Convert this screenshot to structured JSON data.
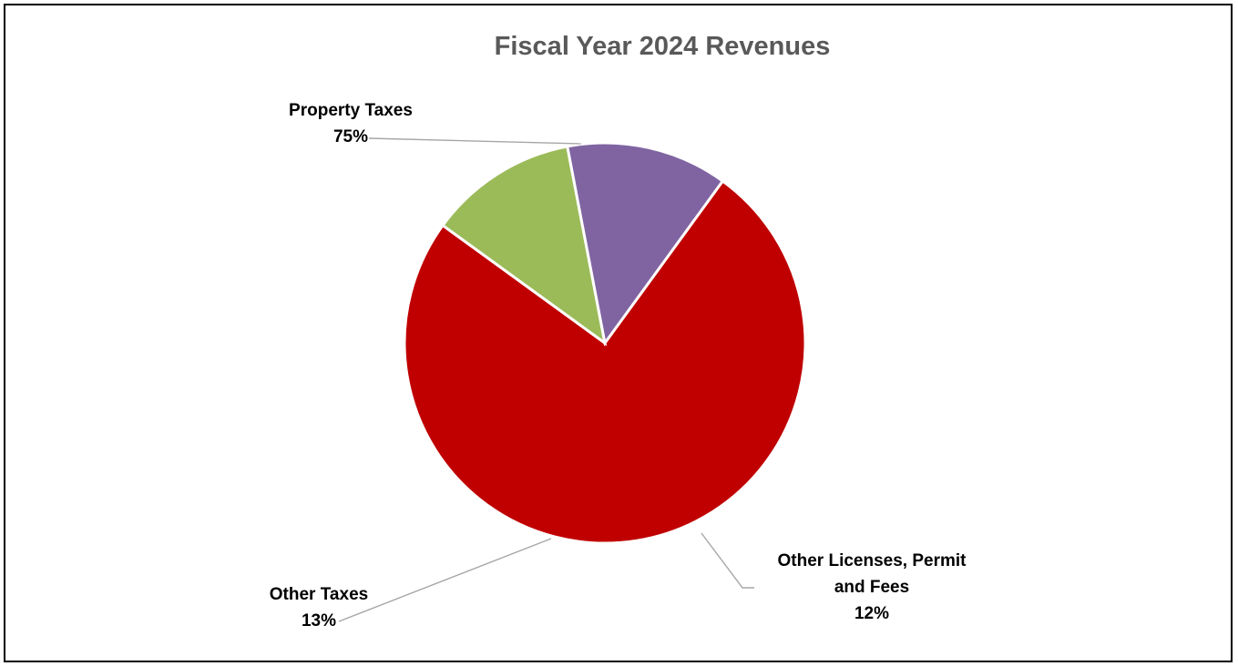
{
  "chart_data": {
    "type": "pie",
    "title": "Fiscal Year 2024 Revenues",
    "slices": [
      {
        "name": "Property Taxes",
        "name_lines": [
          "Property Taxes"
        ],
        "value": 75,
        "label": "75%",
        "color": "#c00000"
      },
      {
        "name": "Other Licenses, Permit and Fees",
        "name_lines": [
          "Other Licenses, Permit",
          "and Fees"
        ],
        "value": 12,
        "label": "12%",
        "color": "#9bbb59"
      },
      {
        "name": "Other Taxes",
        "name_lines": [
          "Other Taxes"
        ],
        "value": 13,
        "label": "13%",
        "color": "#8064a2"
      }
    ],
    "legend": "none",
    "data_labels": "outside with leader lines"
  }
}
